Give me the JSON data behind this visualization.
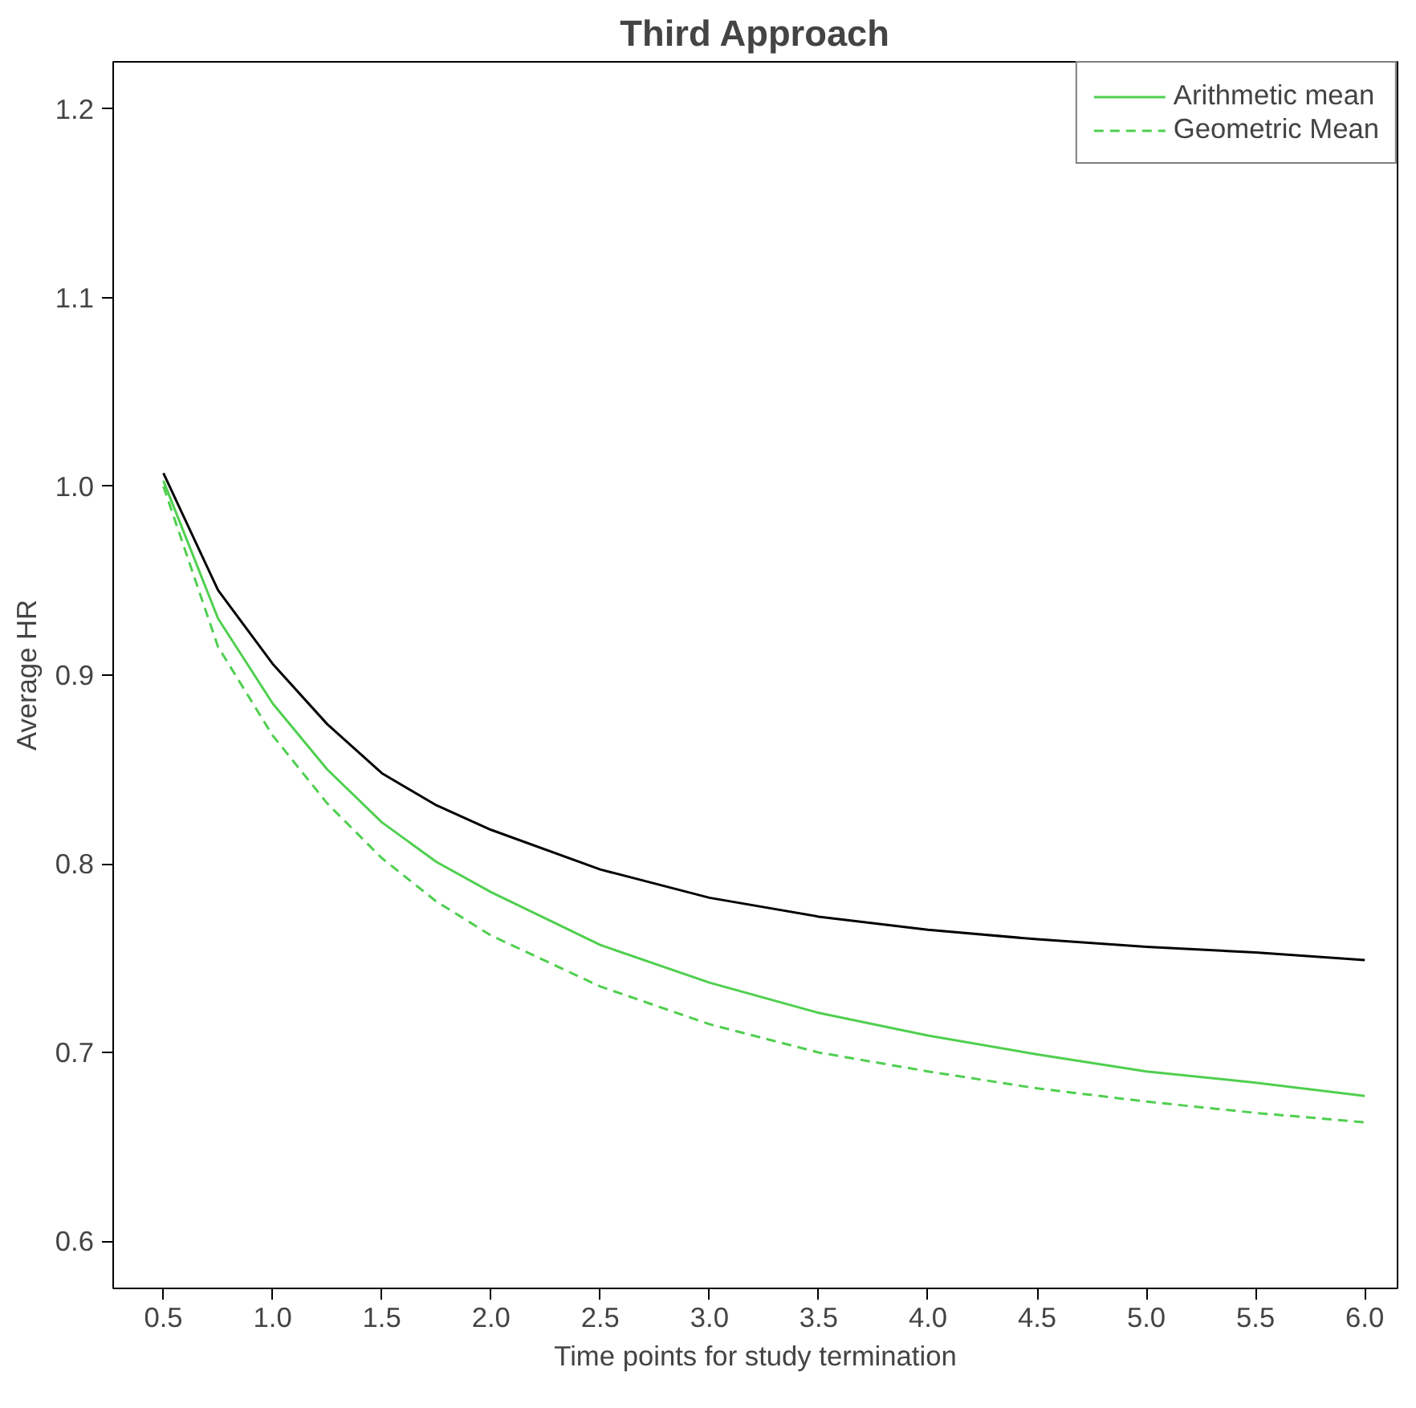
{
  "chart_data": {
    "type": "line",
    "title": "Third Approach",
    "xlabel": "Time points for study termination",
    "ylabel": "Average HR",
    "x": [
      0.5,
      0.75,
      1.0,
      1.25,
      1.5,
      1.75,
      2.0,
      2.5,
      3.0,
      3.5,
      4.0,
      4.5,
      5.0,
      5.5,
      6.0
    ],
    "series": [
      {
        "color": "#000000",
        "line_style": "solid",
        "values": [
          1.007,
          0.945,
          0.906,
          0.874,
          0.848,
          0.831,
          0.818,
          0.797,
          0.782,
          0.772,
          0.765,
          0.76,
          0.756,
          0.753,
          0.749
        ]
      },
      {
        "name": "Arithmetic mean",
        "color": "#4fcf4f",
        "line_style": "solid",
        "values": [
          1.003,
          0.93,
          0.885,
          0.85,
          0.822,
          0.801,
          0.785,
          0.757,
          0.737,
          0.721,
          0.709,
          0.699,
          0.69,
          0.684,
          0.677
        ]
      },
      {
        "name": "Geometric Mean",
        "color": "#4fcf4f",
        "line_style": "dashed",
        "values": [
          1.0,
          0.915,
          0.868,
          0.832,
          0.803,
          0.78,
          0.762,
          0.735,
          0.715,
          0.7,
          0.69,
          0.681,
          0.674,
          0.668,
          0.663
        ]
      }
    ],
    "xlim": [
      0.27,
      6.15
    ],
    "ylim": [
      0.575,
      1.225
    ],
    "xticks": [
      0.5,
      {
        "value": 1,
        "label": "1.0"
      },
      1.5,
      {
        "value": 2,
        "label": "2.0"
      },
      2.5,
      {
        "value": 3,
        "label": "3.0"
      },
      3.5,
      {
        "value": 4,
        "label": "4.0"
      },
      4.5,
      {
        "value": 5,
        "label": "5.0"
      },
      5.5,
      {
        "value": 6,
        "label": "6.0"
      }
    ],
    "yticks": [
      0.6,
      0.7,
      0.8,
      0.9,
      {
        "value": 1,
        "label": "1.0"
      },
      1.1,
      1.2
    ],
    "grid": false,
    "legend": "top right"
  }
}
